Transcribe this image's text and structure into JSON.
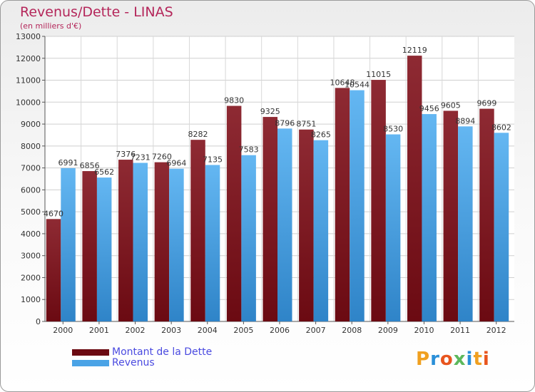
{
  "title": "Revenus/Dette - LINAS",
  "subtitle": "(en milliers d'€)",
  "colors": {
    "dette": "#6b0a12",
    "revenus": "#4aa3e6",
    "title": "#b4265a",
    "legend_text": "#4a4ae0"
  },
  "legend": {
    "dette_label": "Montant de la Dette",
    "revenus_label": "Revenus"
  },
  "logo": {
    "text": "Proxiti"
  },
  "chart_data": {
    "type": "bar",
    "title": "Revenus/Dette - LINAS",
    "subtitle": "(en milliers d'€)",
    "categories": [
      "2000",
      "2001",
      "2002",
      "2003",
      "2004",
      "2005",
      "2006",
      "2007",
      "2008",
      "2009",
      "2010",
      "2011",
      "2012"
    ],
    "series": [
      {
        "name": "Montant de la Dette",
        "values": [
          4670,
          6856,
          7376,
          7260,
          8282,
          9830,
          9325,
          8751,
          10648,
          11015,
          12119,
          9605,
          9699
        ]
      },
      {
        "name": "Revenus",
        "values": [
          6991,
          6562,
          7231,
          6964,
          7135,
          7583,
          8796,
          8265,
          10544,
          8530,
          9456,
          8894,
          8602
        ]
      }
    ],
    "ylim": [
      0,
      13000
    ],
    "yticks": [
      "0",
      "1000",
      "2000",
      "3000",
      "4000",
      "5000",
      "6000",
      "7000",
      "8000",
      "9000",
      "10000",
      "11000",
      "12000",
      "13000"
    ],
    "grid": true,
    "legend_position": "bottom-left"
  }
}
